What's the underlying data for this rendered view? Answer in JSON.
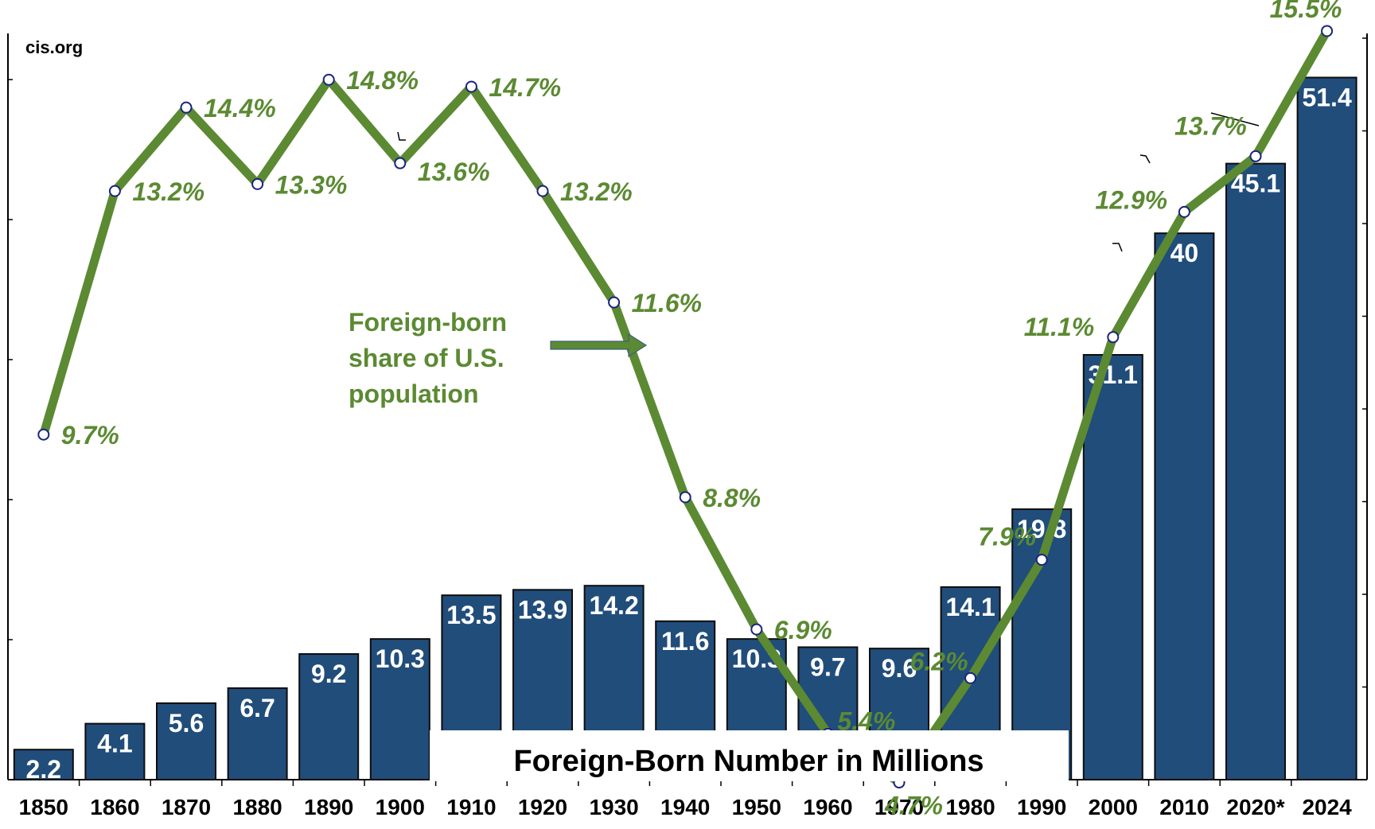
{
  "source": "cis.org",
  "colors": {
    "bar": "#214d7b",
    "line": "#5b8a32",
    "label_green": "#5b8a32",
    "marker_stroke": "#1a237e",
    "marker_fill": "#ffffff"
  },
  "chart_data": {
    "type": "bar",
    "categories": [
      "1850",
      "1860",
      "1870",
      "1880",
      "1890",
      "1900",
      "1910",
      "1920",
      "1930",
      "1940",
      "1950",
      "1960",
      "1970",
      "1980",
      "1990",
      "2000",
      "2010",
      "2020*",
      "2024"
    ],
    "series": [
      {
        "name": "Foreign-Born Number in Millions",
        "type": "bar",
        "axis": "left",
        "values": [
          2.2,
          4.1,
          5.6,
          6.7,
          9.2,
          10.3,
          13.5,
          13.9,
          14.2,
          11.6,
          10.3,
          9.7,
          9.6,
          14.1,
          19.8,
          31.1,
          40,
          45.1,
          51.4
        ],
        "labels": [
          "2.2",
          "4.1",
          "5.6",
          "6.7",
          "9.2",
          "10.3",
          "13.5",
          "13.9",
          "14.2",
          "11.6",
          "10.3",
          "9.7",
          "9.6",
          "14.1",
          "19.8",
          "31.1",
          "40",
          "45.1",
          "51.4"
        ]
      },
      {
        "name": "Foreign-born share of U.S. population",
        "type": "line",
        "axis": "right",
        "values": [
          9.7,
          13.2,
          14.4,
          13.3,
          14.8,
          13.6,
          14.7,
          13.2,
          11.6,
          8.8,
          6.9,
          5.4,
          4.7,
          6.2,
          7.9,
          11.1,
          12.9,
          13.7,
          15.5
        ],
        "labels": [
          "9.7%",
          "13.2%",
          "14.4%",
          "13.3%",
          "14.8%",
          "13.6%",
          "14.7%",
          "13.2%",
          "11.6%",
          "8.8%",
          "6.9%",
          "5.4%",
          "4.7%",
          "6.2%",
          "7.9%",
          "11.1%",
          "12.9%",
          "13.7%",
          "15.5%"
        ]
      }
    ],
    "annotations": {
      "line_label": [
        "Foreign-born",
        "share of U.S.",
        "population"
      ],
      "bar_label": "Foreign-Born Number in Millions"
    },
    "grid": false,
    "legend": "none"
  }
}
